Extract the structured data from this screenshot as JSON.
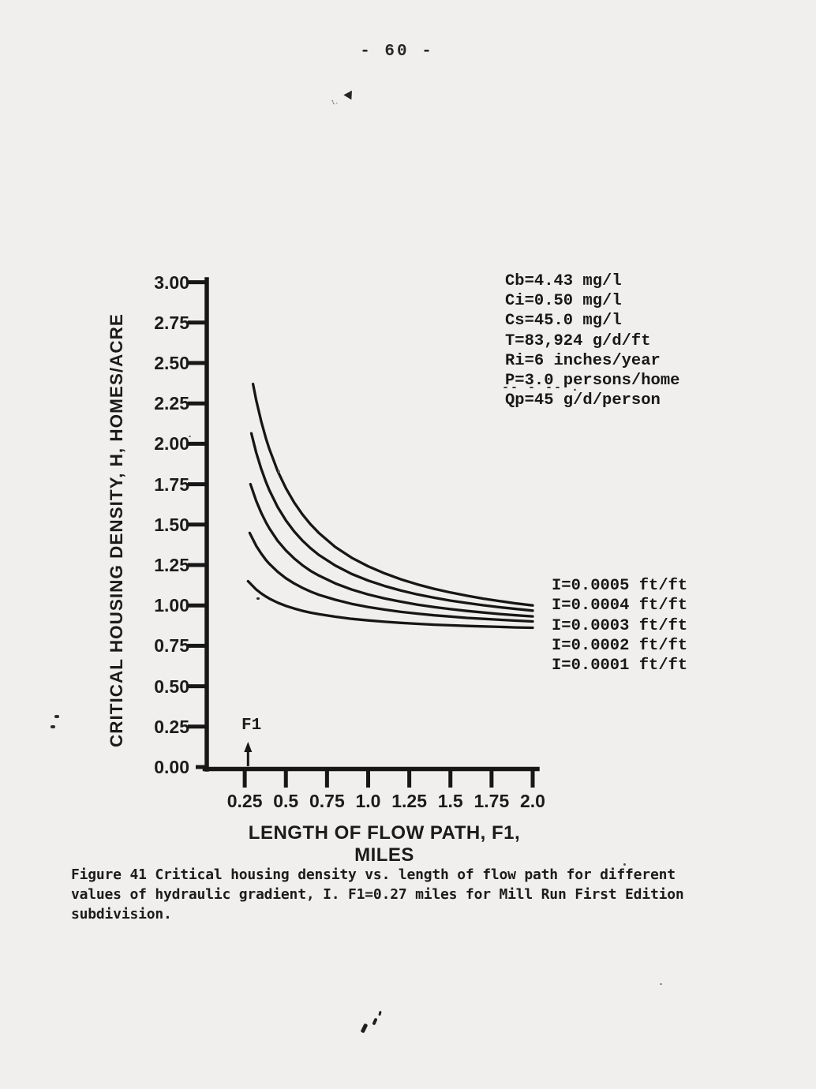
{
  "page": {
    "number_label": "- 60 -",
    "background_color": "#f0efed",
    "ink_color": "#171717"
  },
  "parameters": {
    "lines": [
      "Cb=4.43 mg/l",
      "Ci=0.50 mg/l",
      "Cs=45.0 mg/l",
      "T=83,924 g/d/ft",
      "Ri=6 inches/year",
      "P=3.0 persons/home",
      "Qp=45 g/d/person"
    ],
    "qp_overbar_marks": "-- - -- ."
  },
  "figure": {
    "caption": "Figure 41 Critical housing density vs. length of flow path for different\nvalues of hydraulic gradient, I. F1=0.27 miles for Mill Run First Edition\nsubdivision."
  },
  "chart_data": {
    "type": "line",
    "title": "",
    "xlabel": "LENGTH OF FLOW PATH, F1, MILES",
    "ylabel": "CRITICAL HOUSING DENSITY, H, HOMES/ACRE",
    "xlim": [
      0,
      2.0
    ],
    "ylim": [
      0.0,
      3.0
    ],
    "grid": false,
    "legend_position": "right of curve ends",
    "x_ticks": [
      0.25,
      0.5,
      0.75,
      1.0,
      1.25,
      1.5,
      1.75,
      2.0
    ],
    "x_tick_labels": [
      "0.25",
      "0.5",
      "0.75",
      "1.0",
      "1.25",
      "1.5",
      "1.75",
      "2.0"
    ],
    "y_ticks": [
      0.0,
      0.25,
      0.5,
      0.75,
      1.0,
      1.25,
      1.5,
      1.75,
      2.0,
      2.25,
      2.5,
      2.75,
      3.0
    ],
    "y_tick_labels": [
      "0.00",
      "0.25",
      "0.50",
      "0.75",
      "1.00",
      "1.25",
      "1.50",
      "1.75",
      "2.00",
      "2.25",
      "2.50",
      "2.75",
      "3.00"
    ],
    "annotations": {
      "fl_marker": {
        "label": "F1",
        "x": 0.27,
        "note": "F1=0.27 miles, arrow on x-axis"
      }
    },
    "series": [
      {
        "name": "I=0.0005 ft/ft",
        "points": [
          [
            0.3,
            2.37
          ],
          [
            0.32,
            2.269
          ],
          [
            0.35,
            2.139
          ],
          [
            0.38,
            2.03
          ],
          [
            0.4,
            1.967
          ],
          [
            0.45,
            1.832
          ],
          [
            0.5,
            1.725
          ],
          [
            0.55,
            1.637
          ],
          [
            0.6,
            1.564
          ],
          [
            0.65,
            1.502
          ],
          [
            0.7,
            1.449
          ],
          [
            0.8,
            1.362
          ],
          [
            0.9,
            1.295
          ],
          [
            1.0,
            1.242
          ],
          [
            1.1,
            1.198
          ],
          [
            1.2,
            1.161
          ],
          [
            1.3,
            1.13
          ],
          [
            1.4,
            1.103
          ],
          [
            1.5,
            1.08
          ],
          [
            1.6,
            1.06
          ],
          [
            1.7,
            1.042
          ],
          [
            1.8,
            1.027
          ],
          [
            1.9,
            1.012
          ],
          [
            2.0,
            1.0
          ]
        ]
      },
      {
        "name": "I=0.0004 ft/ft",
        "points": [
          [
            0.29,
            2.065
          ],
          [
            0.32,
            1.945
          ],
          [
            0.35,
            1.845
          ],
          [
            0.38,
            1.761
          ],
          [
            0.4,
            1.712
          ],
          [
            0.45,
            1.609
          ],
          [
            0.5,
            1.526
          ],
          [
            0.55,
            1.458
          ],
          [
            0.6,
            1.402
          ],
          [
            0.65,
            1.354
          ],
          [
            0.7,
            1.313
          ],
          [
            0.8,
            1.247
          ],
          [
            0.9,
            1.195
          ],
          [
            1.0,
            1.154
          ],
          [
            1.1,
            1.12
          ],
          [
            1.2,
            1.092
          ],
          [
            1.3,
            1.068
          ],
          [
            1.4,
            1.048
          ],
          [
            1.5,
            1.03
          ],
          [
            1.6,
            1.015
          ],
          [
            1.7,
            1.001
          ],
          [
            1.8,
            0.989
          ],
          [
            1.9,
            0.978
          ],
          [
            2.0,
            0.968
          ]
        ]
      },
      {
        "name": "I=0.0003 ft/ft",
        "points": [
          [
            0.285,
            1.75
          ],
          [
            0.32,
            1.646
          ],
          [
            0.35,
            1.573
          ],
          [
            0.38,
            1.512
          ],
          [
            0.4,
            1.476
          ],
          [
            0.45,
            1.4
          ],
          [
            0.5,
            1.34
          ],
          [
            0.55,
            1.291
          ],
          [
            0.6,
            1.249
          ],
          [
            0.65,
            1.214
          ],
          [
            0.7,
            1.185
          ],
          [
            0.8,
            1.136
          ],
          [
            0.9,
            1.098
          ],
          [
            1.0,
            1.068
          ],
          [
            1.1,
            1.043
          ],
          [
            1.2,
            1.023
          ],
          [
            1.3,
            1.005
          ],
          [
            1.4,
            0.99
          ],
          [
            1.5,
            0.977
          ],
          [
            1.6,
            0.966
          ],
          [
            1.7,
            0.956
          ],
          [
            1.8,
            0.947
          ],
          [
            1.9,
            0.939
          ],
          [
            2.0,
            0.932
          ]
        ]
      },
      {
        "name": "I=0.0002 ft/ft",
        "points": [
          [
            0.28,
            1.448
          ],
          [
            0.32,
            1.368
          ],
          [
            0.35,
            1.321
          ],
          [
            0.38,
            1.28
          ],
          [
            0.4,
            1.257
          ],
          [
            0.45,
            1.208
          ],
          [
            0.5,
            1.168
          ],
          [
            0.55,
            1.136
          ],
          [
            0.6,
            1.109
          ],
          [
            0.65,
            1.086
          ],
          [
            0.7,
            1.066
          ],
          [
            0.8,
            1.035
          ],
          [
            0.9,
            1.01
          ],
          [
            1.0,
            0.99
          ],
          [
            1.1,
            0.974
          ],
          [
            1.2,
            0.96
          ],
          [
            1.3,
            0.949
          ],
          [
            1.4,
            0.939
          ],
          [
            1.5,
            0.931
          ],
          [
            1.6,
            0.923
          ],
          [
            1.7,
            0.917
          ],
          [
            1.8,
            0.911
          ],
          [
            1.9,
            0.906
          ],
          [
            2.0,
            0.901
          ]
        ]
      },
      {
        "name": "I=0.0001 ft/ft",
        "points": [
          [
            0.27,
            1.15
          ],
          [
            0.32,
            1.098
          ],
          [
            0.35,
            1.074
          ],
          [
            0.38,
            1.054
          ],
          [
            0.4,
            1.042
          ],
          [
            0.45,
            1.017
          ],
          [
            0.5,
            0.997
          ],
          [
            0.55,
            0.981
          ],
          [
            0.6,
            0.967
          ],
          [
            0.65,
            0.955
          ],
          [
            0.7,
            0.946
          ],
          [
            0.8,
            0.93
          ],
          [
            0.9,
            0.917
          ],
          [
            1.0,
            0.907
          ],
          [
            1.1,
            0.899
          ],
          [
            1.2,
            0.892
          ],
          [
            1.3,
            0.886
          ],
          [
            1.4,
            0.881
          ],
          [
            1.5,
            0.877
          ],
          [
            1.6,
            0.873
          ],
          [
            1.7,
            0.87
          ],
          [
            1.8,
            0.867
          ],
          [
            1.9,
            0.864
          ],
          [
            2.0,
            0.862
          ]
        ]
      }
    ]
  }
}
